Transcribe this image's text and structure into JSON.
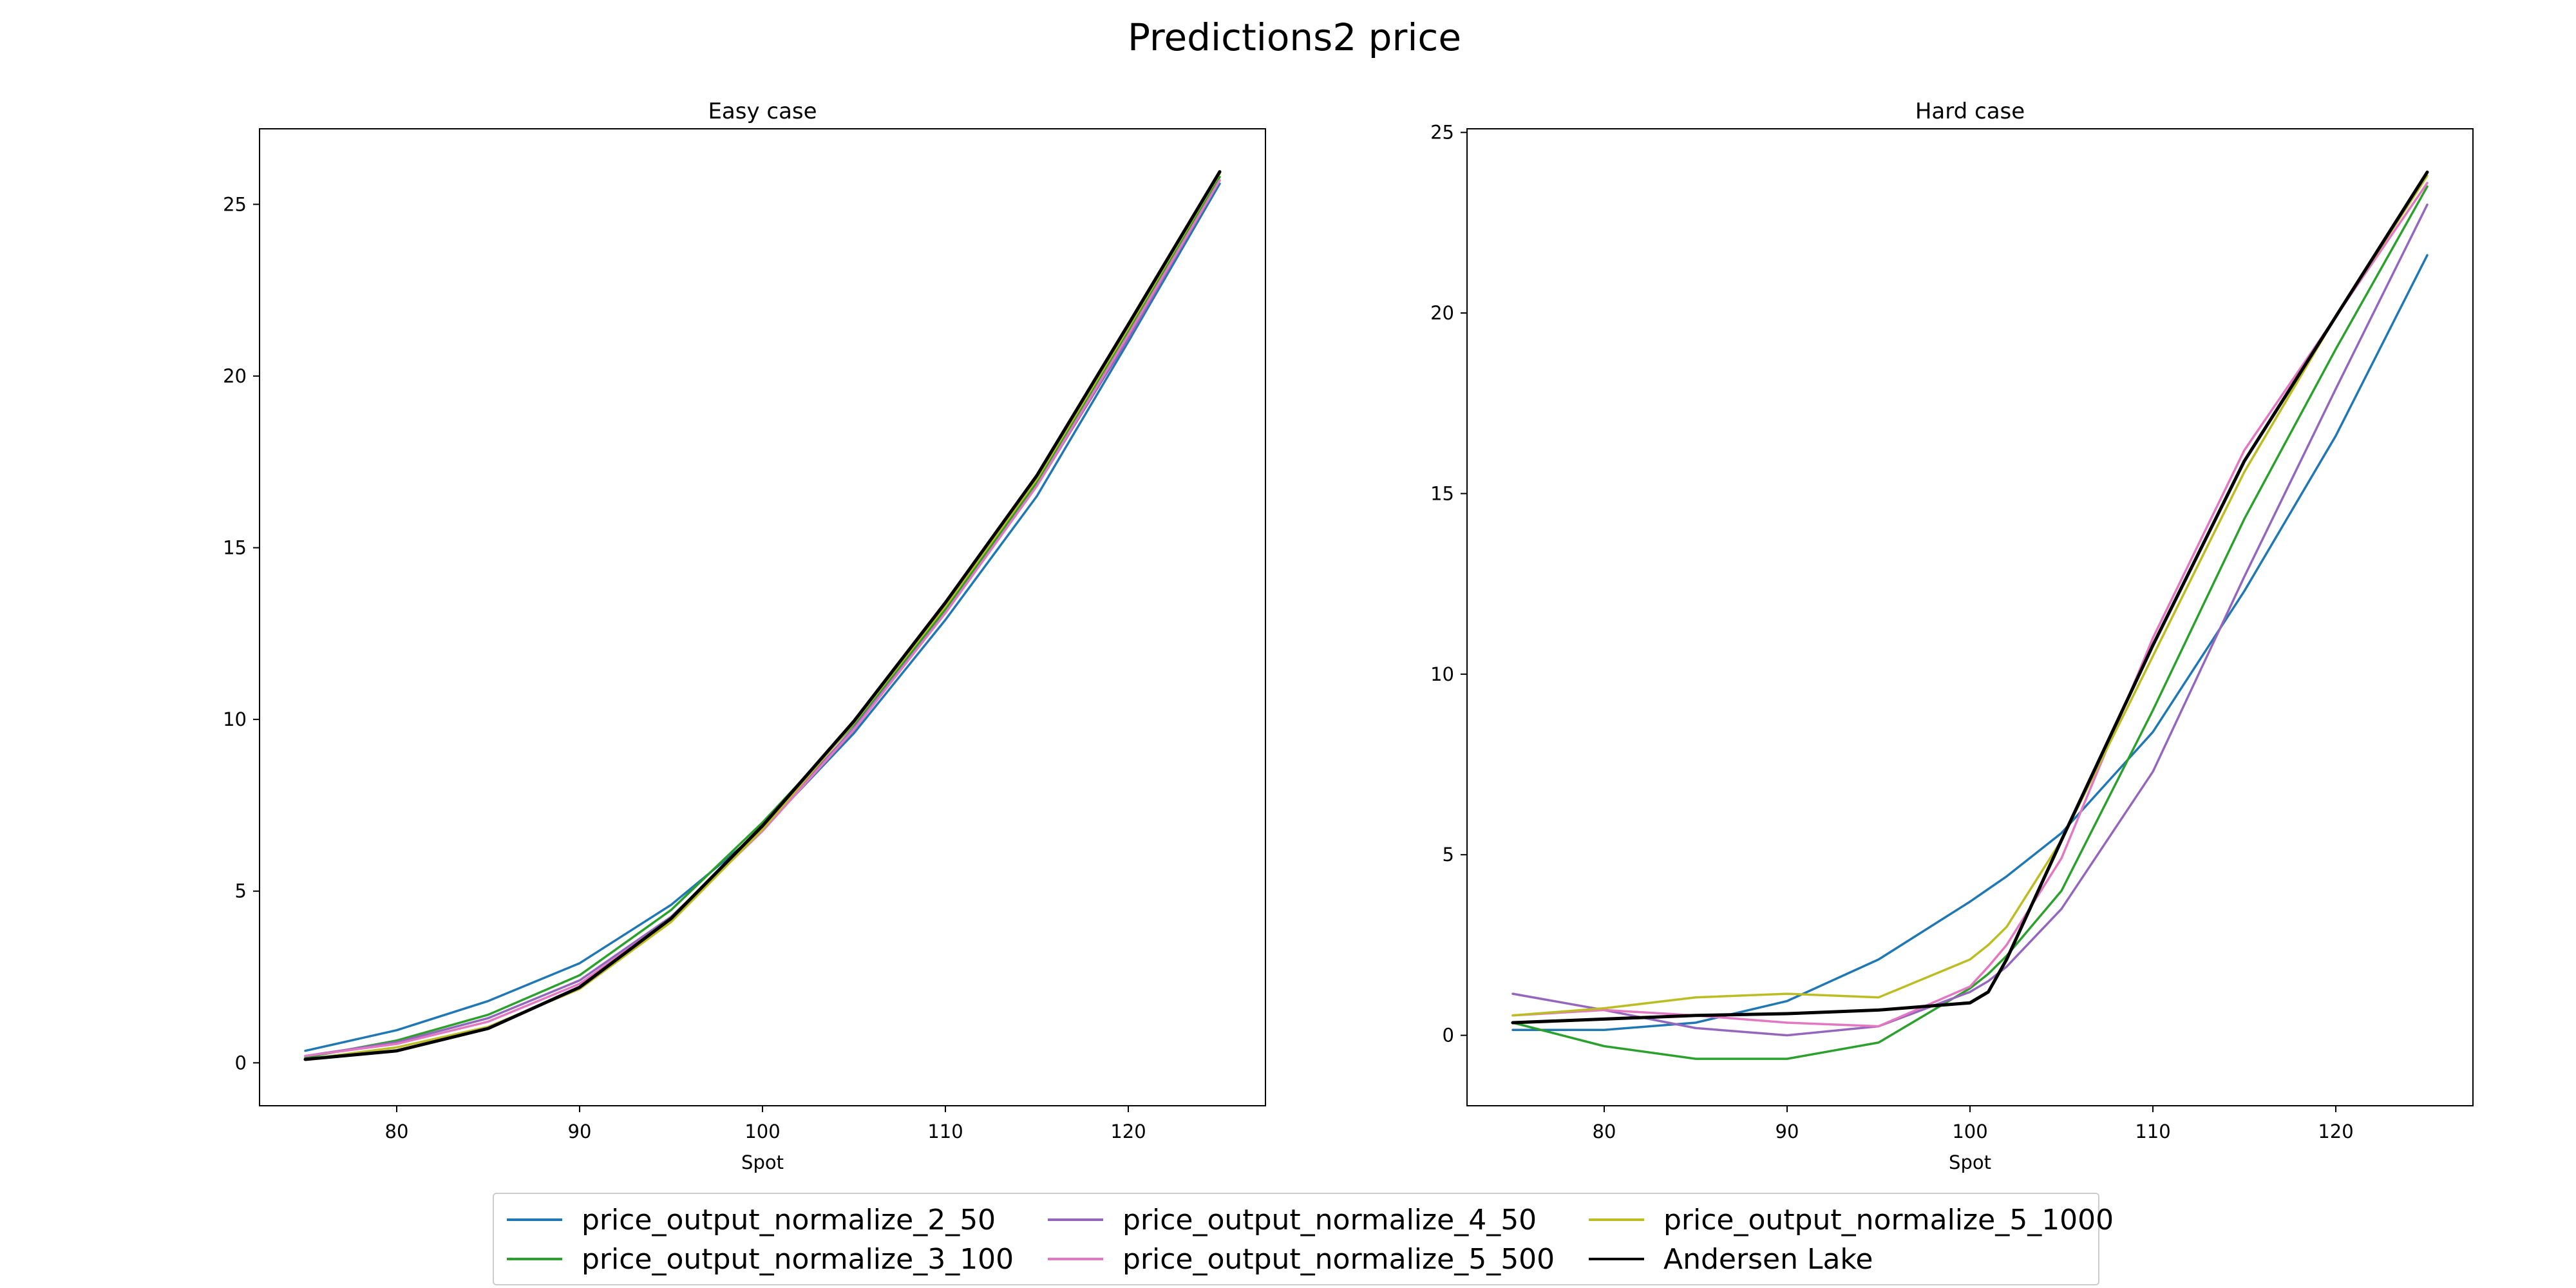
{
  "figure_title": "Predictions2 price",
  "series_colors": {
    "price_output_normalize_2_50": "#1f77b4",
    "price_output_normalize_3_100": "#2ca02c",
    "price_output_normalize_4_50": "#9467bd",
    "price_output_normalize_5_500": "#e377c2",
    "price_output_normalize_5_1000": "#bcbd22",
    "Andersen Lake": "#000000"
  },
  "legend": {
    "entries": [
      "price_output_normalize_2_50",
      "price_output_normalize_3_100",
      "price_output_normalize_4_50",
      "price_output_normalize_5_500",
      "price_output_normalize_5_1000",
      "Andersen Lake"
    ]
  },
  "chart_data": [
    {
      "type": "line",
      "title": "Easy case",
      "xlabel": "Spot",
      "ylabel": "",
      "xlim": [
        72.5,
        127.5
      ],
      "ylim": [
        -1.25,
        27.2
      ],
      "xticks": [
        80,
        90,
        100,
        110,
        120
      ],
      "yticks": [
        0,
        5,
        10,
        15,
        20,
        25
      ],
      "grid": false,
      "x": [
        75,
        80,
        85,
        90,
        95,
        100,
        105,
        110,
        115,
        120,
        125
      ],
      "series": [
        {
          "name": "price_output_normalize_2_50",
          "values": [
            0.35,
            0.95,
            1.8,
            2.9,
            4.6,
            6.8,
            9.6,
            12.9,
            16.5,
            21.0,
            25.6
          ]
        },
        {
          "name": "price_output_normalize_3_100",
          "values": [
            0.15,
            0.65,
            1.4,
            2.55,
            4.45,
            7.0,
            9.85,
            13.2,
            16.9,
            21.3,
            25.8
          ]
        },
        {
          "name": "price_output_normalize_4_50",
          "values": [
            0.2,
            0.6,
            1.3,
            2.4,
            4.25,
            6.8,
            9.75,
            13.1,
            16.8,
            21.1,
            25.7
          ]
        },
        {
          "name": "price_output_normalize_5_500",
          "values": [
            0.2,
            0.55,
            1.2,
            2.3,
            4.2,
            6.75,
            9.7,
            13.1,
            16.8,
            21.2,
            25.7
          ]
        },
        {
          "name": "price_output_normalize_5_1000",
          "values": [
            0.1,
            0.45,
            1.05,
            2.15,
            4.1,
            6.8,
            9.9,
            13.3,
            17.0,
            21.4,
            25.9
          ]
        },
        {
          "name": "Andersen Lake",
          "values": [
            0.1,
            0.35,
            1.0,
            2.2,
            4.2,
            6.9,
            9.95,
            13.4,
            17.1,
            21.5,
            25.95
          ]
        }
      ]
    },
    {
      "type": "line",
      "title": "Hard case",
      "xlabel": "Spot",
      "ylabel": "",
      "xlim": [
        72.5,
        127.5
      ],
      "ylim": [
        -1.95,
        25.1
      ],
      "xticks": [
        80,
        90,
        100,
        110,
        120
      ],
      "yticks": [
        0,
        5,
        10,
        15,
        20,
        25
      ],
      "grid": false,
      "x": [
        75,
        80,
        85,
        90,
        95,
        100,
        101,
        102,
        105,
        110,
        115,
        120,
        125
      ],
      "series": [
        {
          "name": "price_output_normalize_2_50",
          "values": [
            0.15,
            0.15,
            0.35,
            0.95,
            2.1,
            3.7,
            4.05,
            4.4,
            5.6,
            8.4,
            12.3,
            16.6,
            21.6
          ]
        },
        {
          "name": "price_output_normalize_3_100",
          "values": [
            0.35,
            -0.3,
            -0.65,
            -0.65,
            -0.2,
            1.3,
            1.7,
            2.2,
            4.0,
            9.0,
            14.3,
            19.0,
            23.5
          ]
        },
        {
          "name": "price_output_normalize_4_50",
          "values": [
            1.15,
            0.7,
            0.2,
            0.0,
            0.25,
            1.2,
            1.5,
            1.9,
            3.5,
            7.3,
            12.7,
            17.9,
            23.0
          ]
        },
        {
          "name": "price_output_normalize_5_500",
          "values": [
            0.55,
            0.7,
            0.55,
            0.35,
            0.25,
            1.35,
            1.9,
            2.5,
            4.9,
            11.0,
            16.2,
            19.9,
            23.6
          ]
        },
        {
          "name": "price_output_normalize_5_1000",
          "values": [
            0.55,
            0.75,
            1.05,
            1.15,
            1.05,
            2.1,
            2.5,
            3.0,
            5.4,
            10.5,
            15.6,
            19.9,
            23.8
          ]
        },
        {
          "name": "Andersen Lake",
          "values": [
            0.35,
            0.45,
            0.55,
            0.6,
            0.7,
            0.9,
            1.2,
            2.1,
            5.4,
            10.8,
            15.9,
            19.9,
            23.9
          ]
        }
      ]
    }
  ]
}
